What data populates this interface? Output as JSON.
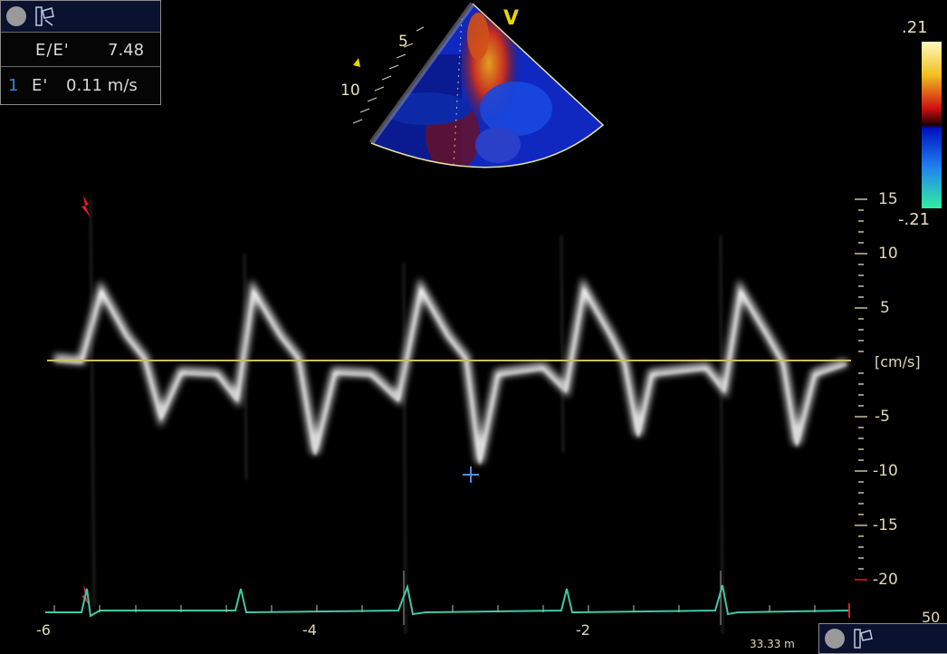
{
  "measurements": {
    "ratio_label": "E/E'",
    "ratio_value": "7.48",
    "index": "1",
    "velocity_label": "E'",
    "velocity_value": "0.11 m/s"
  },
  "sector": {
    "depth_marks": [
      "5",
      "10"
    ],
    "mode_label": "V"
  },
  "color_scale": {
    "top": ".21",
    "bottom": "-.21"
  },
  "velocity_axis": {
    "unit": "[cm/s]",
    "ticks": [
      "15",
      "10",
      "5",
      "-5",
      "-10",
      "-15",
      "-20"
    ]
  },
  "time_axis": {
    "ticks": [
      "-6",
      "-4",
      "-2"
    ],
    "sweep_speed": "33.33 m"
  },
  "corner": {
    "value": "50"
  },
  "colors": {
    "baseline": "#c8c060",
    "ecg": "#3fc8a8",
    "trigger": "#e02020",
    "cursor": "#5a8ae0"
  },
  "icons": [
    "record-icon",
    "probe-icon",
    "trigger-marker-icon",
    "cursor-cross-icon"
  ]
}
